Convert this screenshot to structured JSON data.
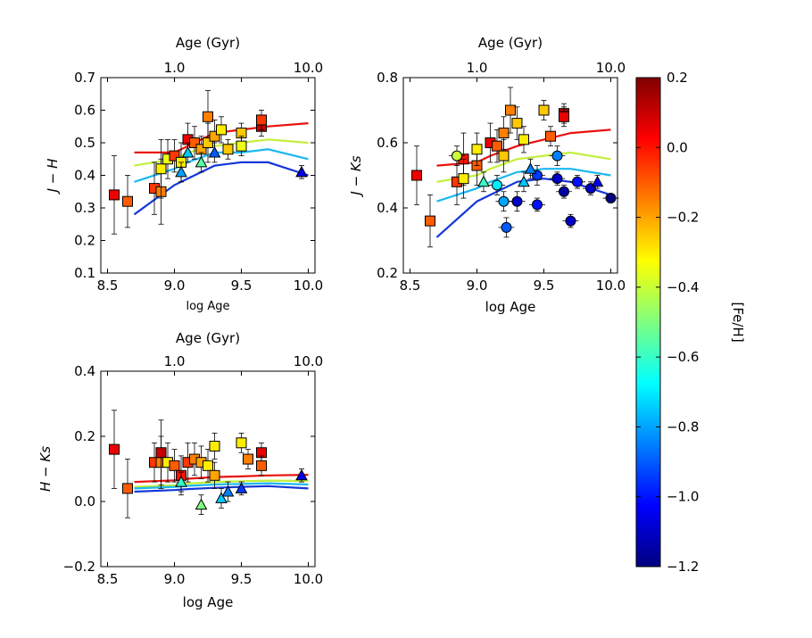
{
  "chart_data": {
    "type": "scatter",
    "colorbar": {
      "label": "[Fe/H]",
      "vmin": -1.2,
      "vmax": 0.2,
      "ticks": [
        "0.2",
        "0.0",
        "−0.2",
        "−0.4",
        "−0.6",
        "−0.8",
        "−1.0",
        "−1.2"
      ],
      "tick_values": [
        0.2,
        0.0,
        -0.2,
        -0.4,
        -0.6,
        -0.8,
        -1.0,
        -1.2
      ]
    },
    "top_axis": {
      "label": "Age (Gyr)",
      "ticks": [
        "1.0",
        "10.0"
      ],
      "tick_values": [
        9.0,
        10.0
      ]
    },
    "x_ticks": [
      "8.5",
      "9.0",
      "9.5",
      "10.0"
    ],
    "x_tick_values": [
      8.5,
      9.0,
      9.5,
      10.0
    ],
    "xlim": [
      8.45,
      10.05
    ],
    "model_tracks": [
      {
        "feh": 0.1,
        "color": "#e8120e",
        "x": [
          8.7,
          9.0,
          9.1,
          9.3,
          9.5,
          9.7,
          10.0
        ]
      },
      {
        "feh": -0.4,
        "color": "#c2f03a",
        "x": [
          8.7,
          9.0,
          9.1,
          9.3,
          9.5,
          9.7,
          10.0
        ]
      },
      {
        "feh": -0.75,
        "color": "#1bb8f0",
        "x": [
          8.7,
          9.0,
          9.1,
          9.3,
          9.5,
          9.7,
          10.0
        ]
      },
      {
        "feh": -1.05,
        "color": "#1437d8",
        "x": [
          8.7,
          9.0,
          9.1,
          9.3,
          9.5,
          9.7,
          10.0
        ]
      }
    ],
    "panels": [
      {
        "id": "JH",
        "ylabel": "J − H",
        "xlabel": "log Age",
        "ylim": [
          0.1,
          0.7
        ],
        "y_ticks": [
          "0.1",
          "0.2",
          "0.3",
          "0.4",
          "0.5",
          "0.6",
          "0.7"
        ],
        "y_tick_values": [
          0.1,
          0.2,
          0.3,
          0.4,
          0.5,
          0.6,
          0.7
        ],
        "track_y": [
          [
            0.47,
            0.47,
            0.49,
            0.53,
            0.54,
            0.55,
            0.56
          ],
          [
            0.43,
            0.45,
            0.47,
            0.49,
            0.5,
            0.51,
            0.5
          ],
          [
            0.38,
            0.42,
            0.44,
            0.47,
            0.47,
            0.48,
            0.45
          ],
          [
            0.28,
            0.37,
            0.39,
            0.43,
            0.44,
            0.44,
            0.4
          ]
        ],
        "points": [
          {
            "x": 8.55,
            "y": 0.34,
            "feh": 0.05,
            "m": "s",
            "ey": 0.12
          },
          {
            "x": 8.65,
            "y": 0.32,
            "feh": -0.1,
            "m": "s",
            "ey": 0.08
          },
          {
            "x": 8.85,
            "y": 0.36,
            "feh": -0.05,
            "m": "s",
            "ey": 0.08
          },
          {
            "x": 8.9,
            "y": 0.35,
            "feh": -0.15,
            "m": "s",
            "ey": 0.1
          },
          {
            "x": 8.9,
            "y": 0.42,
            "feh": -0.3,
            "m": "s",
            "ey": 0.09
          },
          {
            "x": 8.95,
            "y": 0.45,
            "feh": -0.35,
            "m": "s",
            "ey": 0.06
          },
          {
            "x": 9.0,
            "y": 0.46,
            "feh": -0.05,
            "m": "s",
            "ey": 0.05
          },
          {
            "x": 9.05,
            "y": 0.44,
            "feh": -0.3,
            "m": "s",
            "ey": 0.06
          },
          {
            "x": 9.1,
            "y": 0.51,
            "feh": 0.05,
            "m": "s",
            "ey": 0.05
          },
          {
            "x": 9.15,
            "y": 0.5,
            "feh": -0.1,
            "m": "s",
            "ey": 0.05
          },
          {
            "x": 9.2,
            "y": 0.48,
            "feh": -0.2,
            "m": "s",
            "ey": 0.04
          },
          {
            "x": 9.25,
            "y": 0.58,
            "feh": -0.15,
            "m": "s",
            "ey": 0.08
          },
          {
            "x": 9.25,
            "y": 0.5,
            "feh": -0.25,
            "m": "s",
            "ey": 0.06
          },
          {
            "x": 9.3,
            "y": 0.52,
            "feh": -0.2,
            "m": "s",
            "ey": 0.05
          },
          {
            "x": 9.35,
            "y": 0.54,
            "feh": -0.3,
            "m": "s",
            "ey": 0.04
          },
          {
            "x": 9.4,
            "y": 0.48,
            "feh": -0.25,
            "m": "s",
            "ey": 0.03
          },
          {
            "x": 9.5,
            "y": 0.53,
            "feh": -0.25,
            "m": "s",
            "ey": 0.03
          },
          {
            "x": 9.5,
            "y": 0.49,
            "feh": -0.35,
            "m": "s",
            "ey": 0.03
          },
          {
            "x": 9.65,
            "y": 0.55,
            "feh": 0.1,
            "m": "s",
            "ey": 0.03
          },
          {
            "x": 9.65,
            "y": 0.57,
            "feh": -0.05,
            "m": "s",
            "ey": 0.03
          },
          {
            "x": 9.05,
            "y": 0.41,
            "feh": -0.8,
            "m": "t",
            "ey": 0.03
          },
          {
            "x": 9.1,
            "y": 0.47,
            "feh": -0.75,
            "m": "t",
            "ey": 0.03
          },
          {
            "x": 9.2,
            "y": 0.44,
            "feh": -0.55,
            "m": "t",
            "ey": 0.03
          },
          {
            "x": 9.3,
            "y": 0.47,
            "feh": -0.9,
            "m": "t",
            "ey": 0.03
          },
          {
            "x": 9.95,
            "y": 0.41,
            "feh": -1.05,
            "m": "t",
            "ey": 0.02
          }
        ]
      },
      {
        "id": "JK",
        "ylabel": "J − Ks",
        "xlabel": "log Age",
        "ylim": [
          0.2,
          0.8
        ],
        "y_ticks": [
          "0.2",
          "0.4",
          "0.6",
          "0.8"
        ],
        "y_tick_values": [
          0.2,
          0.4,
          0.6,
          0.8
        ],
        "track_y": [
          [
            0.53,
            0.54,
            0.56,
            0.59,
            0.61,
            0.63,
            0.64
          ],
          [
            0.48,
            0.5,
            0.52,
            0.55,
            0.56,
            0.57,
            0.55
          ],
          [
            0.42,
            0.46,
            0.48,
            0.51,
            0.52,
            0.52,
            0.5
          ],
          [
            0.31,
            0.42,
            0.44,
            0.48,
            0.49,
            0.48,
            0.44
          ]
        ],
        "points": [
          {
            "x": 8.55,
            "y": 0.5,
            "feh": 0.05,
            "m": "s",
            "ey": 0.09
          },
          {
            "x": 8.65,
            "y": 0.36,
            "feh": -0.1,
            "m": "s",
            "ey": 0.08
          },
          {
            "x": 8.85,
            "y": 0.48,
            "feh": -0.05,
            "m": "s",
            "ey": 0.07
          },
          {
            "x": 8.9,
            "y": 0.55,
            "feh": 0.0,
            "m": "s",
            "ey": 0.08
          },
          {
            "x": 8.9,
            "y": 0.49,
            "feh": -0.3,
            "m": "s",
            "ey": 0.06
          },
          {
            "x": 9.0,
            "y": 0.53,
            "feh": -0.1,
            "m": "s",
            "ey": 0.06
          },
          {
            "x": 9.0,
            "y": 0.58,
            "feh": -0.3,
            "m": "s",
            "ey": 0.05
          },
          {
            "x": 9.1,
            "y": 0.6,
            "feh": 0.05,
            "m": "s",
            "ey": 0.06
          },
          {
            "x": 9.15,
            "y": 0.59,
            "feh": -0.1,
            "m": "s",
            "ey": 0.05
          },
          {
            "x": 9.2,
            "y": 0.63,
            "feh": -0.15,
            "m": "s",
            "ey": 0.05
          },
          {
            "x": 9.2,
            "y": 0.56,
            "feh": -0.25,
            "m": "s",
            "ey": 0.05
          },
          {
            "x": 9.25,
            "y": 0.7,
            "feh": -0.15,
            "m": "s",
            "ey": 0.07
          },
          {
            "x": 9.3,
            "y": 0.66,
            "feh": -0.25,
            "m": "s",
            "ey": 0.05
          },
          {
            "x": 9.35,
            "y": 0.61,
            "feh": -0.3,
            "m": "s",
            "ey": 0.04
          },
          {
            "x": 9.5,
            "y": 0.7,
            "feh": -0.25,
            "m": "s",
            "ey": 0.03
          },
          {
            "x": 9.55,
            "y": 0.62,
            "feh": -0.1,
            "m": "s",
            "ey": 0.03
          },
          {
            "x": 9.65,
            "y": 0.69,
            "feh": 0.15,
            "m": "s",
            "ey": 0.03
          },
          {
            "x": 9.65,
            "y": 0.68,
            "feh": 0.05,
            "m": "s",
            "ey": 0.03
          },
          {
            "x": 8.85,
            "y": 0.56,
            "feh": -0.4,
            "m": "c",
            "ey": 0.03
          },
          {
            "x": 9.15,
            "y": 0.47,
            "feh": -0.7,
            "m": "c",
            "ey": 0.03
          },
          {
            "x": 9.2,
            "y": 0.42,
            "feh": -0.8,
            "m": "c",
            "ey": 0.03
          },
          {
            "x": 9.22,
            "y": 0.34,
            "feh": -0.9,
            "m": "c",
            "ey": 0.03
          },
          {
            "x": 9.3,
            "y": 0.42,
            "feh": -1.1,
            "m": "c",
            "ey": 0.03
          },
          {
            "x": 9.45,
            "y": 0.41,
            "feh": -1.0,
            "m": "c",
            "ey": 0.02
          },
          {
            "x": 9.45,
            "y": 0.5,
            "feh": -0.95,
            "m": "c",
            "ey": 0.03
          },
          {
            "x": 9.6,
            "y": 0.56,
            "feh": -0.85,
            "m": "c",
            "ey": 0.03
          },
          {
            "x": 9.6,
            "y": 0.49,
            "feh": -1.1,
            "m": "c",
            "ey": 0.02
          },
          {
            "x": 9.65,
            "y": 0.45,
            "feh": -1.15,
            "m": "c",
            "ey": 0.02
          },
          {
            "x": 9.7,
            "y": 0.36,
            "feh": -1.1,
            "m": "c",
            "ey": 0.02
          },
          {
            "x": 9.75,
            "y": 0.48,
            "feh": -1.0,
            "m": "c",
            "ey": 0.02
          },
          {
            "x": 9.85,
            "y": 0.46,
            "feh": -1.1,
            "m": "c",
            "ey": 0.02
          },
          {
            "x": 10.0,
            "y": 0.43,
            "feh": -1.2,
            "m": "c",
            "ey": 0.01
          },
          {
            "x": 9.05,
            "y": 0.48,
            "feh": -0.6,
            "m": "t",
            "ey": 0.03
          },
          {
            "x": 9.35,
            "y": 0.48,
            "feh": -0.75,
            "m": "t",
            "ey": 0.03
          },
          {
            "x": 9.4,
            "y": 0.52,
            "feh": -0.85,
            "m": "t",
            "ey": 0.03
          },
          {
            "x": 9.9,
            "y": 0.48,
            "feh": -1.05,
            "m": "t",
            "ey": 0.02
          }
        ]
      },
      {
        "id": "HK",
        "ylabel": "H − Ks",
        "xlabel": "log Age",
        "ylim": [
          -0.2,
          0.4
        ],
        "y_ticks": [
          "−0.2",
          "0.0",
          "0.2",
          "0.4"
        ],
        "y_tick_values": [
          -0.2,
          0.0,
          0.2,
          0.4
        ],
        "track_y": [
          [
            0.06,
            0.065,
            0.07,
            0.075,
            0.077,
            0.08,
            0.082
          ],
          [
            0.045,
            0.05,
            0.055,
            0.06,
            0.062,
            0.064,
            0.063
          ],
          [
            0.04,
            0.045,
            0.048,
            0.052,
            0.054,
            0.056,
            0.052
          ],
          [
            0.03,
            0.035,
            0.038,
            0.042,
            0.045,
            0.047,
            0.04
          ]
        ],
        "points": [
          {
            "x": 8.55,
            "y": 0.16,
            "feh": 0.05,
            "m": "s",
            "ey": 0.12
          },
          {
            "x": 8.65,
            "y": 0.04,
            "feh": -0.1,
            "m": "s",
            "ey": 0.09
          },
          {
            "x": 8.85,
            "y": 0.12,
            "feh": -0.05,
            "m": "s",
            "ey": 0.06
          },
          {
            "x": 8.9,
            "y": 0.12,
            "feh": -0.15,
            "m": "s",
            "ey": 0.08
          },
          {
            "x": 8.9,
            "y": 0.15,
            "feh": 0.1,
            "m": "s",
            "ey": 0.1
          },
          {
            "x": 8.95,
            "y": 0.12,
            "feh": -0.3,
            "m": "s",
            "ey": 0.06
          },
          {
            "x": 9.0,
            "y": 0.11,
            "feh": -0.1,
            "m": "s",
            "ey": 0.05
          },
          {
            "x": 9.05,
            "y": 0.08,
            "feh": 0.0,
            "m": "s",
            "ey": 0.06
          },
          {
            "x": 9.1,
            "y": 0.12,
            "feh": -0.05,
            "m": "s",
            "ey": 0.06
          },
          {
            "x": 9.15,
            "y": 0.13,
            "feh": -0.15,
            "m": "s",
            "ey": 0.05
          },
          {
            "x": 9.2,
            "y": 0.12,
            "feh": -0.2,
            "m": "s",
            "ey": 0.05
          },
          {
            "x": 9.25,
            "y": 0.11,
            "feh": -0.3,
            "m": "s",
            "ey": 0.05
          },
          {
            "x": 9.3,
            "y": 0.17,
            "feh": -0.3,
            "m": "s",
            "ey": 0.04
          },
          {
            "x": 9.3,
            "y": 0.08,
            "feh": -0.2,
            "m": "s",
            "ey": 0.04
          },
          {
            "x": 9.5,
            "y": 0.18,
            "feh": -0.3,
            "m": "s",
            "ey": 0.03
          },
          {
            "x": 9.55,
            "y": 0.13,
            "feh": -0.15,
            "m": "s",
            "ey": 0.03
          },
          {
            "x": 9.65,
            "y": 0.15,
            "feh": 0.05,
            "m": "s",
            "ey": 0.03
          },
          {
            "x": 9.65,
            "y": 0.11,
            "feh": -0.1,
            "m": "s",
            "ey": 0.03
          },
          {
            "x": 9.05,
            "y": 0.06,
            "feh": -0.6,
            "m": "t",
            "ey": 0.03
          },
          {
            "x": 9.2,
            "y": -0.01,
            "feh": -0.5,
            "m": "t",
            "ey": 0.03
          },
          {
            "x": 9.35,
            "y": 0.01,
            "feh": -0.75,
            "m": "t",
            "ey": 0.03
          },
          {
            "x": 9.4,
            "y": 0.03,
            "feh": -0.85,
            "m": "t",
            "ey": 0.03
          },
          {
            "x": 9.5,
            "y": 0.04,
            "feh": -0.95,
            "m": "t",
            "ey": 0.02
          },
          {
            "x": 9.95,
            "y": 0.08,
            "feh": -1.05,
            "m": "t",
            "ey": 0.02
          }
        ]
      }
    ]
  }
}
